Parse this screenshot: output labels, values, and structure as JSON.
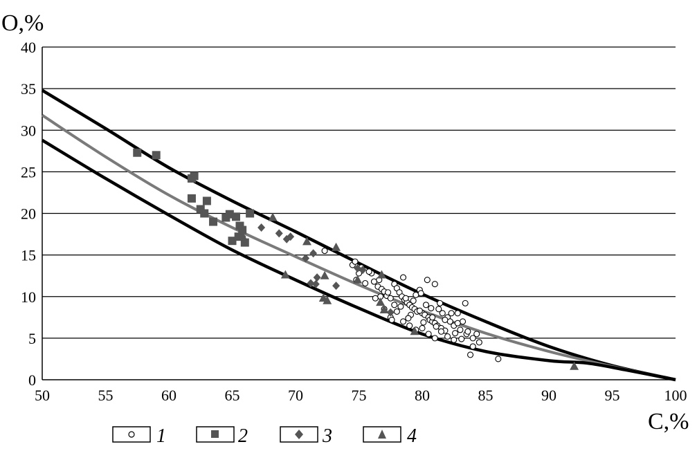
{
  "chart_data": {
    "type": "scatter",
    "title": "",
    "xlabel": "C,%",
    "ylabel": "O,%",
    "xlim": [
      50,
      100
    ],
    "ylim": [
      0,
      40
    ],
    "x_ticks": [
      "50",
      "55",
      "60",
      "65",
      "70",
      "75",
      "80",
      "85",
      "90",
      "95",
      "100"
    ],
    "y_ticks": [
      "0",
      "5",
      "10",
      "15",
      "20",
      "25",
      "30",
      "35",
      "40"
    ],
    "grid": "horizontal",
    "legend_position": "bottom",
    "colors": {
      "marker": "#555555",
      "outline": "#000000",
      "center_line": "#7a7a7a",
      "bound_line": "#000000"
    },
    "series": [
      {
        "name": "1",
        "marker": "open-circle",
        "points": [
          [
            72.3,
            15.5
          ],
          [
            74.5,
            13.8
          ],
          [
            74.7,
            14.2
          ],
          [
            75.2,
            13.5
          ],
          [
            75.0,
            12.8
          ],
          [
            74.8,
            12.0
          ],
          [
            75.5,
            11.6
          ],
          [
            76.0,
            12.8
          ],
          [
            76.5,
            11.2
          ],
          [
            76.8,
            10.9
          ],
          [
            77.0,
            10.6
          ],
          [
            76.2,
            11.8
          ],
          [
            77.2,
            10.1
          ],
          [
            77.5,
            9.8
          ],
          [
            77.8,
            11.5
          ],
          [
            78.0,
            11.0
          ],
          [
            78.2,
            10.5
          ],
          [
            78.4,
            10.0
          ],
          [
            78.5,
            12.3
          ],
          [
            78.6,
            9.6
          ],
          [
            78.8,
            9.3
          ],
          [
            79.0,
            9.0
          ],
          [
            79.2,
            8.7
          ],
          [
            79.4,
            8.5
          ],
          [
            79.5,
            10.2
          ],
          [
            79.6,
            8.2
          ],
          [
            79.8,
            10.8
          ],
          [
            80.0,
            8.0
          ],
          [
            80.2,
            7.8
          ],
          [
            80.4,
            12.0
          ],
          [
            80.5,
            7.5
          ],
          [
            80.6,
            7.2
          ],
          [
            80.8,
            7.0
          ],
          [
            81.0,
            11.5
          ],
          [
            81.0,
            6.8
          ],
          [
            81.2,
            6.5
          ],
          [
            81.4,
            9.2
          ],
          [
            81.5,
            6.2
          ],
          [
            81.6,
            8.0
          ],
          [
            81.8,
            5.9
          ],
          [
            82.0,
            7.5
          ],
          [
            82.2,
            7.0
          ],
          [
            82.5,
            6.5
          ],
          [
            82.8,
            8.0
          ],
          [
            83.0,
            6.0
          ],
          [
            83.2,
            7.0
          ],
          [
            83.5,
            5.5
          ],
          [
            83.4,
            9.2
          ],
          [
            84.0,
            5.0
          ],
          [
            84.5,
            4.5
          ],
          [
            84.0,
            4.0
          ],
          [
            83.8,
            3.0
          ],
          [
            86.0,
            2.5
          ],
          [
            77.0,
            8.5
          ],
          [
            77.5,
            7.5
          ],
          [
            78.0,
            8.2
          ],
          [
            78.5,
            7.0
          ],
          [
            79.0,
            6.5
          ],
          [
            79.5,
            6.0
          ],
          [
            80.0,
            6.2
          ],
          [
            80.5,
            5.5
          ],
          [
            81.0,
            5.0
          ],
          [
            81.5,
            5.8
          ],
          [
            82.0,
            5.2
          ],
          [
            82.5,
            4.8
          ],
          [
            77.8,
            9.0
          ],
          [
            78.3,
            8.8
          ],
          [
            79.3,
            9.5
          ],
          [
            80.3,
            9.0
          ],
          [
            81.3,
            8.5
          ],
          [
            82.3,
            8.0
          ],
          [
            76.7,
            10.0
          ],
          [
            76.3,
            9.8
          ],
          [
            77.3,
            10.5
          ],
          [
            78.7,
            9.8
          ],
          [
            79.8,
            8.3
          ],
          [
            80.8,
            7.5
          ],
          [
            81.8,
            7.2
          ],
          [
            82.8,
            6.8
          ],
          [
            83.6,
            5.8
          ],
          [
            79.1,
            7.8
          ],
          [
            80.1,
            6.9
          ],
          [
            81.1,
            6.4
          ],
          [
            77.6,
            7.2
          ],
          [
            78.9,
            7.4
          ],
          [
            82.6,
            5.6
          ],
          [
            83.1,
            4.9
          ],
          [
            84.3,
            5.5
          ],
          [
            75.8,
            13.0
          ],
          [
            76.6,
            12.0
          ],
          [
            79.9,
            10.4
          ],
          [
            80.7,
            8.6
          ]
        ]
      },
      {
        "name": "2",
        "marker": "filled-square",
        "points": [
          [
            57.5,
            27.3
          ],
          [
            59.0,
            27.0
          ],
          [
            62.0,
            24.5
          ],
          [
            61.8,
            24.2
          ],
          [
            61.8,
            21.8
          ],
          [
            62.5,
            20.5
          ],
          [
            63.0,
            21.5
          ],
          [
            62.8,
            20.0
          ],
          [
            63.5,
            19.0
          ],
          [
            64.5,
            19.5
          ],
          [
            64.8,
            19.9
          ],
          [
            65.3,
            19.6
          ],
          [
            65.6,
            18.5
          ],
          [
            66.4,
            20.0
          ],
          [
            65.0,
            16.7
          ],
          [
            66.0,
            16.5
          ],
          [
            65.5,
            17.2
          ],
          [
            65.8,
            18.0
          ]
        ]
      },
      {
        "name": "3",
        "marker": "filled-diamond",
        "points": [
          [
            65.8,
            17.2
          ],
          [
            67.3,
            18.3
          ],
          [
            68.7,
            17.6
          ],
          [
            69.3,
            16.9
          ],
          [
            69.6,
            17.2
          ],
          [
            71.4,
            15.2
          ],
          [
            71.2,
            11.6
          ],
          [
            71.7,
            12.3
          ],
          [
            71.6,
            11.5
          ],
          [
            73.2,
            11.3
          ],
          [
            74.9,
            13.4
          ],
          [
            75.3,
            13.2
          ],
          [
            77.5,
            8.1
          ],
          [
            70.8,
            14.6
          ]
        ]
      },
      {
        "name": "4",
        "marker": "filled-triangle",
        "points": [
          [
            65.8,
            17.3
          ],
          [
            68.2,
            19.5
          ],
          [
            69.2,
            12.6
          ],
          [
            70.9,
            16.6
          ],
          [
            72.3,
            12.5
          ],
          [
            72.2,
            9.8
          ],
          [
            72.5,
            9.5
          ],
          [
            73.2,
            15.9
          ],
          [
            74.9,
            12.0
          ],
          [
            76.8,
            12.6
          ],
          [
            76.7,
            9.3
          ],
          [
            77.0,
            8.4
          ],
          [
            79.4,
            5.8
          ],
          [
            92.0,
            1.6
          ]
        ]
      }
    ],
    "lines": [
      {
        "role": "upper-bound",
        "color": "#000000",
        "points": [
          [
            50,
            34.8
          ],
          [
            55,
            30.2
          ],
          [
            60,
            25.5
          ],
          [
            65,
            21.5
          ],
          [
            70,
            17.8
          ],
          [
            75,
            14.0
          ],
          [
            80,
            10.3
          ],
          [
            85,
            7.0
          ],
          [
            90,
            4.0
          ],
          [
            95,
            1.7
          ],
          [
            100,
            0
          ]
        ]
      },
      {
        "role": "average",
        "color": "#7a7a7a",
        "points": [
          [
            50,
            31.8
          ],
          [
            55,
            26.8
          ],
          [
            60,
            22.2
          ],
          [
            65,
            18.3
          ],
          [
            70,
            14.8
          ],
          [
            75,
            11.4
          ],
          [
            80,
            8.3
          ],
          [
            85,
            5.6
          ],
          [
            90,
            3.4
          ],
          [
            95,
            1.6
          ],
          [
            100,
            0
          ]
        ]
      },
      {
        "role": "lower-bound",
        "color": "#000000",
        "points": [
          [
            50,
            28.8
          ],
          [
            55,
            24.2
          ],
          [
            60,
            19.8
          ],
          [
            65,
            15.6
          ],
          [
            70,
            12.0
          ],
          [
            75,
            8.6
          ],
          [
            80,
            5.5
          ],
          [
            85,
            3.4
          ],
          [
            90,
            2.3
          ],
          [
            93,
            2.0
          ],
          [
            96,
            1.2
          ],
          [
            100,
            0
          ]
        ]
      }
    ],
    "legend": [
      {
        "label": "1",
        "marker": "open-circle"
      },
      {
        "label": "2",
        "marker": "filled-square"
      },
      {
        "label": "3",
        "marker": "filled-diamond"
      },
      {
        "label": "4",
        "marker": "filled-triangle"
      }
    ]
  }
}
